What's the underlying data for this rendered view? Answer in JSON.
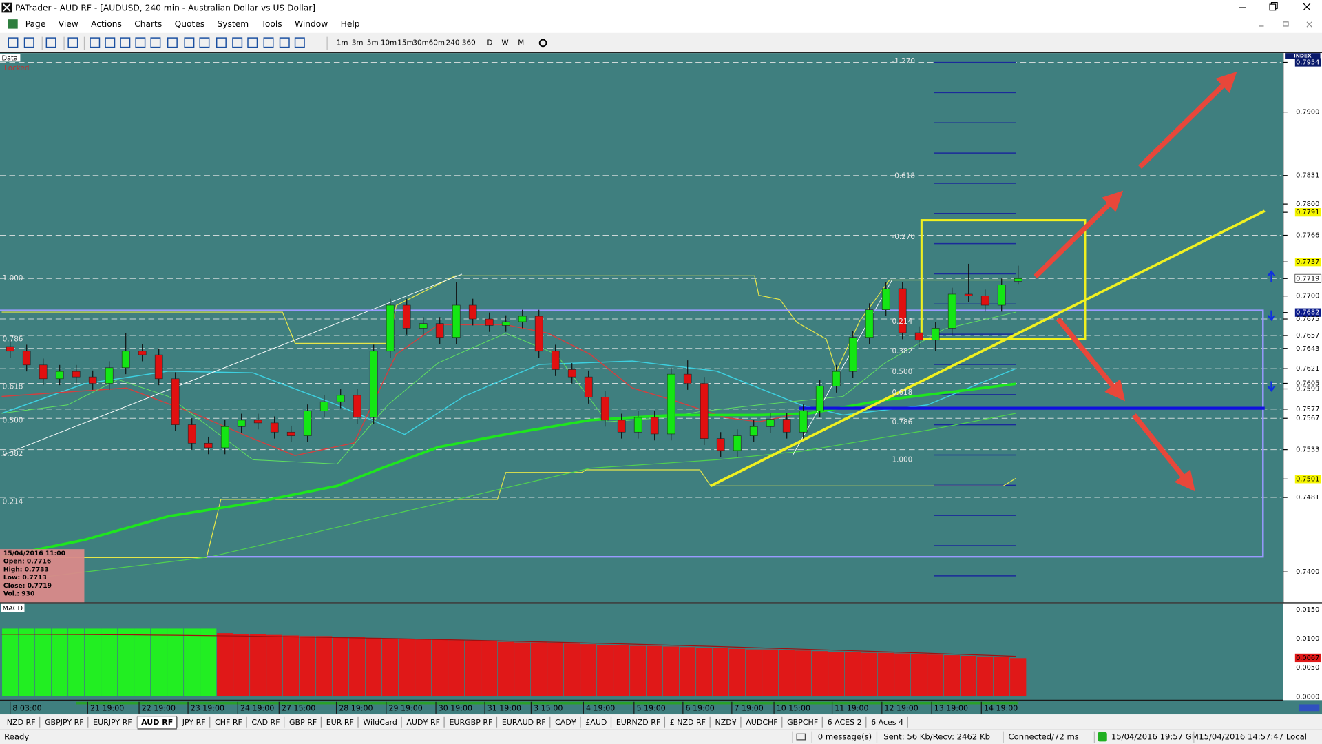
{
  "window": {
    "title": "PATrader - AUD RF - [AUDUSD, 240 min - Australian Dollar vs US Dollar]"
  },
  "menu": [
    "Page",
    "View",
    "Actions",
    "Charts",
    "Quotes",
    "System",
    "Tools",
    "Window",
    "Help"
  ],
  "toolbar": {
    "timeframes": [
      "1m",
      "3m",
      "5m",
      "10m",
      "15m",
      "30m",
      "60m",
      "240",
      "360",
      "D",
      "W",
      "M"
    ]
  },
  "chart": {
    "corner_labels": {
      "data": "Data",
      "locked": "Locked"
    },
    "price_axis": {
      "range": [
        0.7367,
        0.7964
      ],
      "header": "INDEX",
      "labels": [
        {
          "text": "0.7954",
          "style": "index",
          "dash": true
        },
        {
          "text": "0.7900"
        },
        {
          "text": "0.7831",
          "dash": true
        },
        {
          "text": "0.7800"
        },
        {
          "text": "0.7791",
          "style": "yellow"
        },
        {
          "text": "0.7766",
          "dash": true
        },
        {
          "text": "0.7737",
          "style": "yellow"
        },
        {
          "text": "0.7719",
          "style": "current",
          "dash": true
        },
        {
          "text": "0.7700"
        },
        {
          "text": "0.7682",
          "style": "blue"
        },
        {
          "text": "0.7675",
          "dash": true
        },
        {
          "text": "0.7657",
          "dash": true
        },
        {
          "text": "0.7643",
          "dash": true
        },
        {
          "text": "0.7621",
          "dash": true
        },
        {
          "text": "0.7605",
          "dash": true
        },
        {
          "text": "0.7599",
          "dash": true
        },
        {
          "text": "0.7577",
          "dash": true
        },
        {
          "text": "0.7567",
          "dash": true
        },
        {
          "text": "0.7533",
          "dash": true
        },
        {
          "text": "0.7501",
          "style": "yellow"
        },
        {
          "text": "0.7481",
          "dash": true
        },
        {
          "text": "0.7400"
        }
      ]
    },
    "fib_left": [
      "1.000",
      "0.786",
      "0.618",
      "0.500",
      "0.382",
      "0.214"
    ],
    "fib_right": [
      "-1.270",
      "-0.618",
      "-0.270",
      "0.214",
      "0.382",
      "0.500",
      "0.618",
      "0.786",
      "1.000"
    ],
    "info_box": [
      "15/04/2016 11:00",
      "Open: 0.7716",
      "High: 0.7733",
      "Low: 0.7713",
      "Close: 0.7719",
      "Vol.: 930"
    ],
    "candles": [
      [
        0.7645,
        0.7652,
        0.7633,
        0.764
      ],
      [
        0.764,
        0.7647,
        0.7618,
        0.7625
      ],
      [
        0.7625,
        0.7632,
        0.7603,
        0.761
      ],
      [
        0.761,
        0.7625,
        0.7603,
        0.7618
      ],
      [
        0.7618,
        0.7625,
        0.7605,
        0.7612
      ],
      [
        0.7612,
        0.7619,
        0.7598,
        0.7605
      ],
      [
        0.7605,
        0.7629,
        0.7598,
        0.7622
      ],
      [
        0.7622,
        0.766,
        0.7615,
        0.764
      ],
      [
        0.764,
        0.7648,
        0.7629,
        0.7636
      ],
      [
        0.7636,
        0.7643,
        0.7603,
        0.761
      ],
      [
        0.761,
        0.7617,
        0.7553,
        0.756
      ],
      [
        0.756,
        0.7567,
        0.7533,
        0.754
      ],
      [
        0.754,
        0.7547,
        0.7528,
        0.7535
      ],
      [
        0.7535,
        0.7565,
        0.7528,
        0.7558
      ],
      [
        0.7558,
        0.7572,
        0.7551,
        0.7565
      ],
      [
        0.7565,
        0.7572,
        0.7555,
        0.7562
      ],
      [
        0.7562,
        0.7569,
        0.7545,
        0.7552
      ],
      [
        0.7552,
        0.7559,
        0.7541,
        0.7548
      ],
      [
        0.7548,
        0.7582,
        0.7541,
        0.7575
      ],
      [
        0.7575,
        0.7592,
        0.7568,
        0.7585
      ],
      [
        0.7585,
        0.7599,
        0.7578,
        0.7592
      ],
      [
        0.7592,
        0.7599,
        0.7561,
        0.7568
      ],
      [
        0.7568,
        0.7647,
        0.7561,
        0.764
      ],
      [
        0.764,
        0.7697,
        0.7633,
        0.769
      ],
      [
        0.769,
        0.7697,
        0.7658,
        0.7665
      ],
      [
        0.7665,
        0.7677,
        0.7658,
        0.767
      ],
      [
        0.767,
        0.7677,
        0.7648,
        0.7655
      ],
      [
        0.7655,
        0.7715,
        0.7648,
        0.769
      ],
      [
        0.769,
        0.7697,
        0.7668,
        0.7675
      ],
      [
        0.7675,
        0.7682,
        0.7661,
        0.7668
      ],
      [
        0.7668,
        0.7679,
        0.7661,
        0.7672
      ],
      [
        0.7672,
        0.7685,
        0.7665,
        0.7678
      ],
      [
        0.7678,
        0.7685,
        0.7633,
        0.764
      ],
      [
        0.764,
        0.7647,
        0.7613,
        0.762
      ],
      [
        0.762,
        0.7627,
        0.7605,
        0.7612
      ],
      [
        0.7612,
        0.7619,
        0.7583,
        0.759
      ],
      [
        0.759,
        0.7597,
        0.7558,
        0.7565
      ],
      [
        0.7565,
        0.7572,
        0.7545,
        0.7552
      ],
      [
        0.7552,
        0.7575,
        0.7545,
        0.7568
      ],
      [
        0.7568,
        0.7575,
        0.7543,
        0.755
      ],
      [
        0.755,
        0.7622,
        0.7543,
        0.7615
      ],
      [
        0.7615,
        0.763,
        0.7598,
        0.7605
      ],
      [
        0.7605,
        0.7612,
        0.7538,
        0.7545
      ],
      [
        0.7545,
        0.7552,
        0.7525,
        0.7532
      ],
      [
        0.7532,
        0.7555,
        0.7525,
        0.7548
      ],
      [
        0.7548,
        0.7565,
        0.7541,
        0.7558
      ],
      [
        0.7558,
        0.7573,
        0.7551,
        0.7566
      ],
      [
        0.7566,
        0.7573,
        0.7545,
        0.7552
      ],
      [
        0.7552,
        0.7582,
        0.7545,
        0.7575
      ],
      [
        0.7575,
        0.7609,
        0.7568,
        0.7602
      ],
      [
        0.7602,
        0.7625,
        0.7595,
        0.7618
      ],
      [
        0.7618,
        0.7662,
        0.7611,
        0.7655
      ],
      [
        0.7655,
        0.7692,
        0.7648,
        0.7685
      ],
      [
        0.7685,
        0.7715,
        0.7678,
        0.7708
      ],
      [
        0.7708,
        0.7715,
        0.7653,
        0.766
      ],
      [
        0.766,
        0.7667,
        0.7645,
        0.7652
      ],
      [
        0.7652,
        0.7672,
        0.764,
        0.7665
      ],
      [
        0.7665,
        0.7709,
        0.7658,
        0.7702
      ],
      [
        0.7702,
        0.7735,
        0.7693,
        0.77
      ],
      [
        0.77,
        0.7707,
        0.7683,
        0.769
      ],
      [
        0.769,
        0.7719,
        0.7683,
        0.7712
      ],
      [
        0.7716,
        0.7733,
        0.7713,
        0.7719
      ]
    ],
    "time_labels": [
      "8 03:00",
      "21 19:00",
      "22 19:00",
      "23 19:00",
      "24 19:00",
      "27 15:00",
      "28 19:00",
      "29 19:00",
      "30 19:00",
      "31 19:00",
      "3 15:00",
      "4 19:00",
      "5 19:00",
      "6 19:00",
      "7 19:00",
      "10 15:00",
      "11 19:00",
      "12 19:00",
      "13 19:00",
      "14 19:00"
    ]
  },
  "macd": {
    "title": "MACD",
    "range": [
      -0.0006,
      0.016
    ],
    "axis_labels": [
      "0.0150",
      "0.0100",
      "0.0050",
      "0.0000"
    ],
    "current": "0.0067",
    "histogram": [
      0.0118,
      0.0118,
      0.0118,
      0.0118,
      0.0118,
      0.0118,
      0.0118,
      0.0118,
      0.0118,
      0.0118,
      0.0118,
      0.0118,
      0.0118,
      0.011,
      0.0109,
      0.0108,
      0.0107,
      0.0106,
      0.0105,
      0.0105,
      0.0104,
      0.0103,
      0.0102,
      0.0101,
      0.01,
      0.0099,
      0.0099,
      0.0098,
      0.0097,
      0.0096,
      0.0095,
      0.0094,
      0.0094,
      0.0093,
      0.0092,
      0.0091,
      0.009,
      0.0089,
      0.0088,
      0.0088,
      0.0087,
      0.0086,
      0.0085,
      0.0084,
      0.0083,
      0.0082,
      0.0082,
      0.0081,
      0.008,
      0.0079,
      0.0078,
      0.0077,
      0.0076,
      0.0076,
      0.0075,
      0.0074,
      0.0073,
      0.0072,
      0.0071,
      0.007,
      0.0069,
      0.0067
    ],
    "positive_bars": 13
  },
  "tabs": [
    "NZD RF",
    "GBPJPY RF",
    "EURJPY RF",
    "AUD RF",
    "JPY RF",
    "CHF RF",
    "CAD RF",
    "GBP RF",
    "EUR RF",
    "WildCard",
    "AUD¥ RF",
    "EURGBP RF",
    "EURAUD RF",
    "CAD¥",
    "£AUD",
    "EURNZD RF",
    "£ NZD RF",
    "NZD¥",
    "AUDCHF",
    "GBPCHF",
    "6 ACES 2",
    "6 Aces 4"
  ],
  "active_tab": 3,
  "status": {
    "ready": "Ready",
    "messages": "0 message(s)",
    "traffic": "Sent: 56 Kb/Recv: 2462 Kb",
    "connection": "Connected/72 ms",
    "gmt": "15/04/2016 19:57 GMT",
    "local": "15/04/2016 14:57:47 Local"
  }
}
